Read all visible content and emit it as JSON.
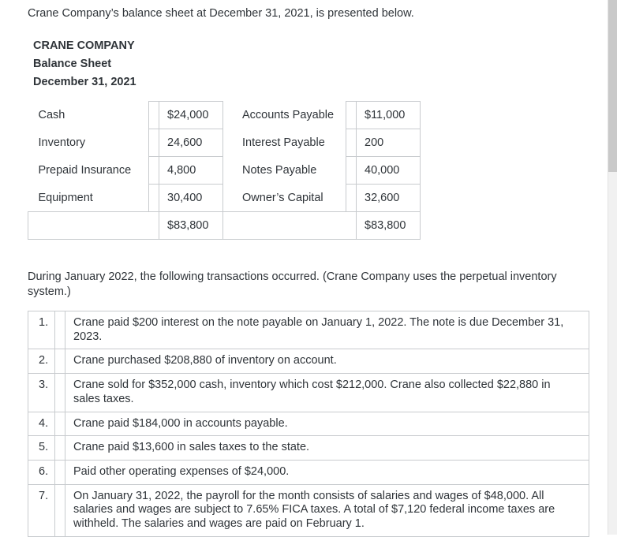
{
  "intro": "Crane Company’s balance sheet at December 31, 2021, is presented below.",
  "balance_sheet": {
    "company": "CRANE COMPANY",
    "title": "Balance Sheet",
    "date": "December 31, 2021",
    "assets": [
      {
        "label": "Cash",
        "value": "$24,000"
      },
      {
        "label": "Inventory",
        "value": "24,600"
      },
      {
        "label": "Prepaid Insurance",
        "value": "4,800"
      },
      {
        "label": "Equipment",
        "value": "30,400"
      }
    ],
    "assets_total": "$83,800",
    "liabilities": [
      {
        "label": "Accounts Payable",
        "value": "$11,000"
      },
      {
        "label": "Interest Payable",
        "value": "200"
      },
      {
        "label": "Notes Payable",
        "value": "40,000"
      },
      {
        "label": "Owner’s Capital",
        "value": "32,600"
      }
    ],
    "liabilities_total": "$83,800"
  },
  "transactions_intro": "During January 2022, the following transactions occurred. (Crane Company uses the perpetual inventory system.)",
  "transactions": [
    {
      "num": "1.",
      "text": "Crane paid $200 interest on the note payable on January 1, 2022. The note is due December 31, 2023."
    },
    {
      "num": "2.",
      "text": "Crane purchased $208,880 of inventory on account."
    },
    {
      "num": "3.",
      "text": "Crane sold for $352,000 cash, inventory which cost $212,000. Crane also collected $22,880 in sales taxes."
    },
    {
      "num": "4.",
      "text": "Crane paid $184,000 in accounts payable."
    },
    {
      "num": "5.",
      "text": "Crane paid $13,600 in sales taxes to the state."
    },
    {
      "num": "6.",
      "text": "Paid other operating expenses of $24,000."
    },
    {
      "num": "7.",
      "text": "On January 31, 2022, the payroll for the month consists of salaries and wages of $48,000. All salaries and wages are subject to 7.65% FICA taxes. A total of $7,120 federal income taxes are withheld. The salaries and wages are paid on February 1."
    }
  ]
}
